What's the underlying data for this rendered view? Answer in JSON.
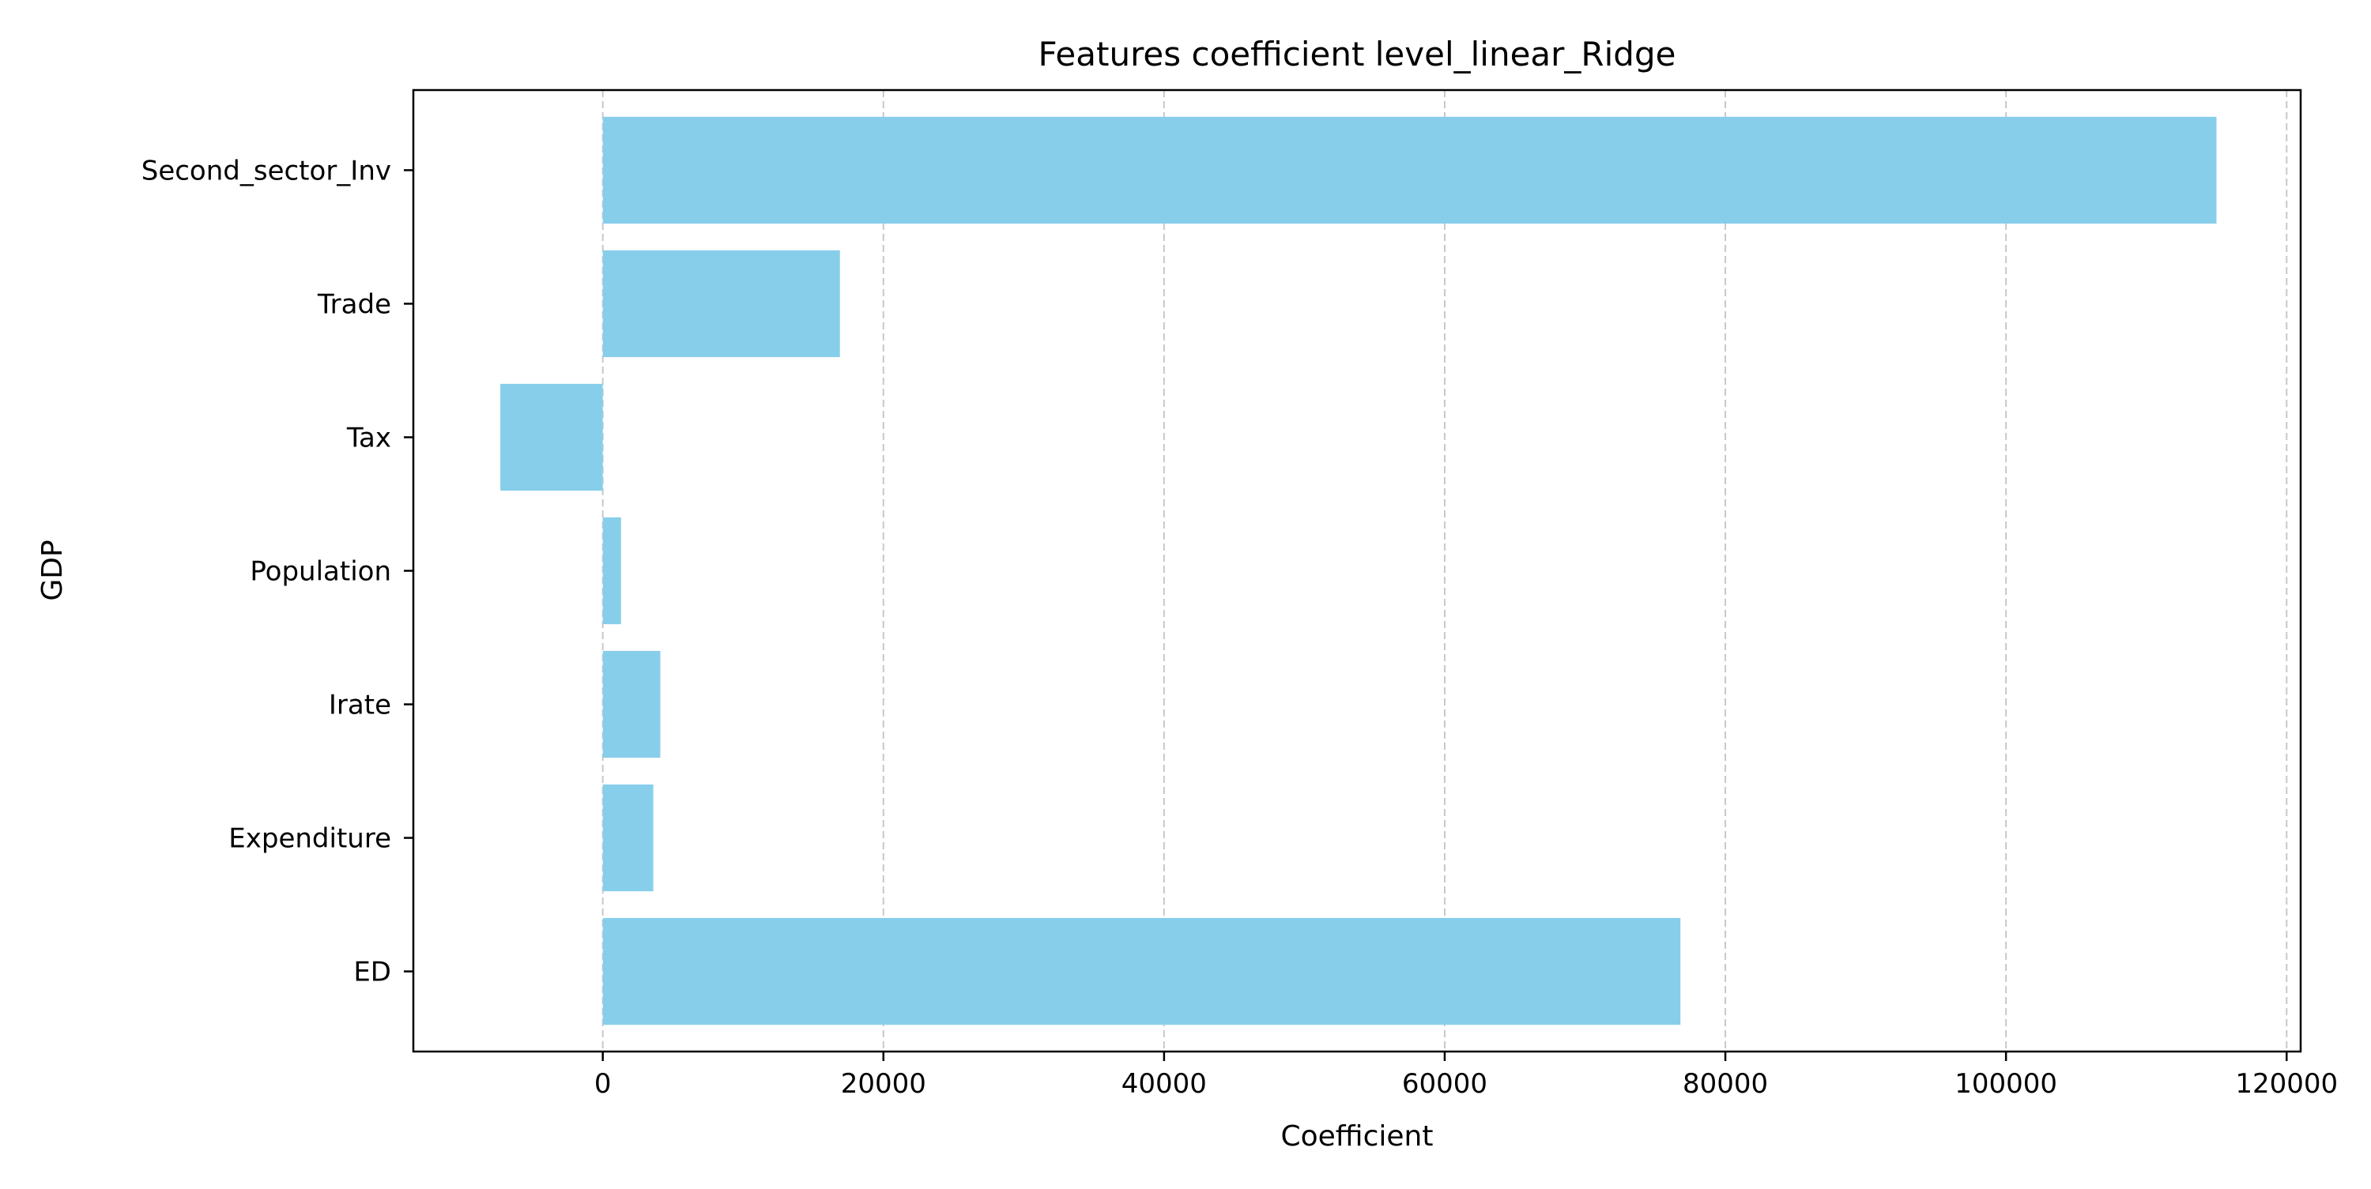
{
  "chart_data": {
    "type": "bar",
    "orientation": "horizontal",
    "title": "Features coefficient level_linear_Ridge",
    "xlabel": "Coefficient",
    "ylabel": "GDP",
    "categories": [
      "Second_sector_Inv",
      "Trade",
      "Tax",
      "Population",
      "Irate",
      "Expenditure",
      "ED"
    ],
    "values": [
      115000,
      16900,
      -7300,
      1300,
      4100,
      3600,
      76800
    ],
    "xlim": [
      -13500,
      121000
    ],
    "xticks": [
      0,
      20000,
      40000,
      60000,
      80000,
      100000,
      120000
    ],
    "xtick_labels": [
      "0",
      "20000",
      "40000",
      "60000",
      "80000",
      "100000",
      "120000"
    ],
    "grid": {
      "x": true,
      "y": false,
      "style": "dashed"
    },
    "legend": null
  },
  "colors": {
    "bar": "#87ceeb",
    "grid": "#c8c8c8",
    "axes": "#000000"
  }
}
